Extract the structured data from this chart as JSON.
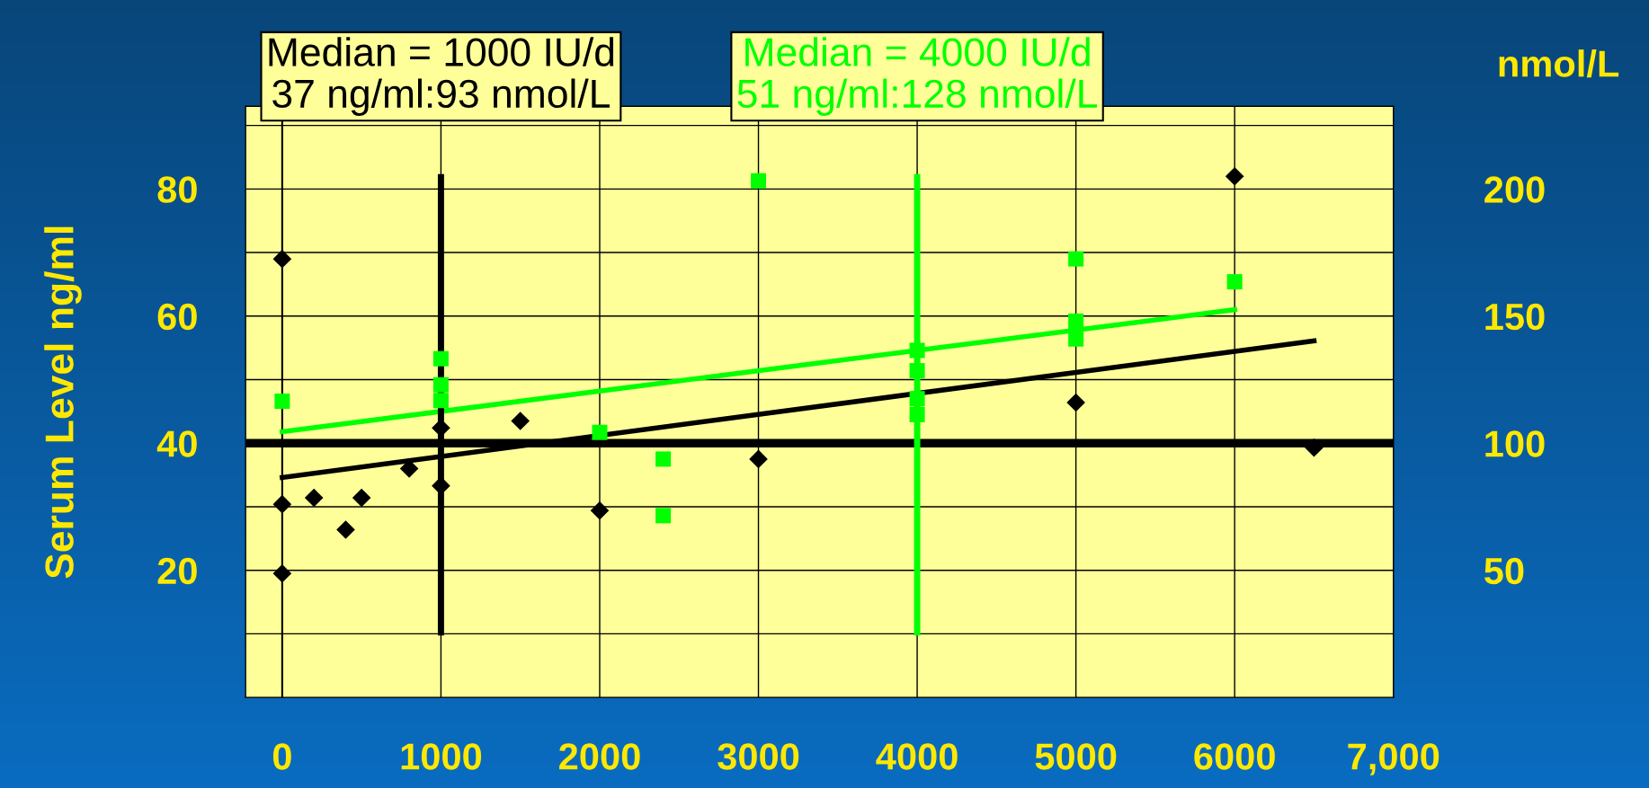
{
  "chart_data": {
    "type": "scatter",
    "ylabel": "Serum Level ng/ml",
    "y2label": "nmol/L",
    "xlim": [
      -230,
      7000
    ],
    "xticks": [
      0,
      1000,
      2000,
      3000,
      4000,
      5000,
      6000,
      {
        "value": 7000,
        "label": "7,000"
      }
    ],
    "ylim": [
      0,
      93
    ],
    "yticks": [
      {
        "value": 10,
        "label": null
      },
      20,
      {
        "value": 30,
        "label": null
      },
      40,
      {
        "value": 50,
        "label": null
      },
      60,
      {
        "value": 70,
        "label": null
      },
      80,
      {
        "value": 90,
        "label": null
      }
    ],
    "y2lim": [
      0,
      232.5
    ],
    "y2ticks": [
      50,
      100,
      150,
      200
    ],
    "grid": true,
    "series": [
      {
        "marker": "diamond",
        "color": "#000000",
        "x": [
          0,
          0,
          0,
          200,
          400,
          500,
          800,
          1000,
          1000,
          1500,
          2000,
          3000,
          5000,
          6000,
          6500
        ],
        "values": [
          69,
          30.4,
          19.5,
          31.4,
          26.4,
          31.4,
          36,
          42.4,
          33.3,
          43.5,
          29.4,
          37.5,
          46.4,
          82,
          39.3
        ]
      },
      {
        "marker": "square",
        "color": "#00ff00",
        "x": [
          0,
          1000,
          1000,
          1000,
          2000,
          2400,
          2400,
          3000,
          4000,
          4000,
          4000,
          4000,
          5000,
          5000,
          5000,
          6000
        ],
        "values": [
          46.6,
          53.3,
          49.2,
          46.7,
          41.7,
          37.5,
          28.6,
          81.3,
          54.6,
          51.4,
          47,
          44.5,
          69,
          59.2,
          56.4,
          65.4
        ]
      },
      {
        "type": "line",
        "marker": "none",
        "color": "#000000",
        "x": [
          0,
          6500
        ],
        "values": [
          34.6,
          56.1
        ]
      },
      {
        "type": "line",
        "marker": "none",
        "color": "#00ff00",
        "x": [
          0,
          6000
        ],
        "values": [
          41.8,
          61
        ]
      }
    ],
    "ref_lines": [
      {
        "axis": "y",
        "value": 40,
        "color": "#000000"
      },
      {
        "axis": "x",
        "value": 1000,
        "color": "#000000",
        "label": "Median = 1000 IU/d\n37 ng/ml:93 nmol/L"
      },
      {
        "axis": "x",
        "value": 4000,
        "color": "#00ff00",
        "label": "Median = 4000 IU/d\n51 ng/ml:128 nmol/L"
      }
    ]
  }
}
